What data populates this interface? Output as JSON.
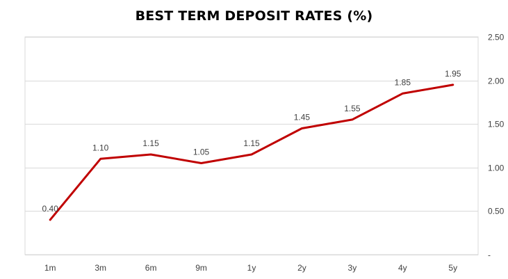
{
  "chart_data": {
    "type": "line",
    "title": "BEST TERM DEPOSIT RATES (%)",
    "categories": [
      "1m",
      "3m",
      "6m",
      "9m",
      "1y",
      "2y",
      "3y",
      "4y",
      "5y"
    ],
    "series": [
      {
        "values": [
          0.4,
          1.1,
          1.15,
          1.05,
          1.15,
          1.45,
          1.55,
          1.85,
          1.95
        ],
        "color": "#c00000"
      }
    ],
    "data_labels": [
      "0.40",
      "1.10",
      "1.15",
      "1.05",
      "1.15",
      "1.45",
      "1.55",
      "1.85",
      "1.95"
    ],
    "y_ticks": [
      {
        "value": 0,
        "label": "-"
      },
      {
        "value": 0.5,
        "label": "0.50"
      },
      {
        "value": 1.0,
        "label": "1.00"
      },
      {
        "value": 1.5,
        "label": "1.50"
      },
      {
        "value": 2.0,
        "label": "2.00"
      },
      {
        "value": 2.5,
        "label": "2.50"
      }
    ],
    "ylim": [
      0,
      2.5
    ],
    "y_axis_side": "right",
    "grid": true,
    "colors": {
      "line": "#c00000",
      "grid": "#d9d9d9",
      "text": "#404040"
    }
  }
}
